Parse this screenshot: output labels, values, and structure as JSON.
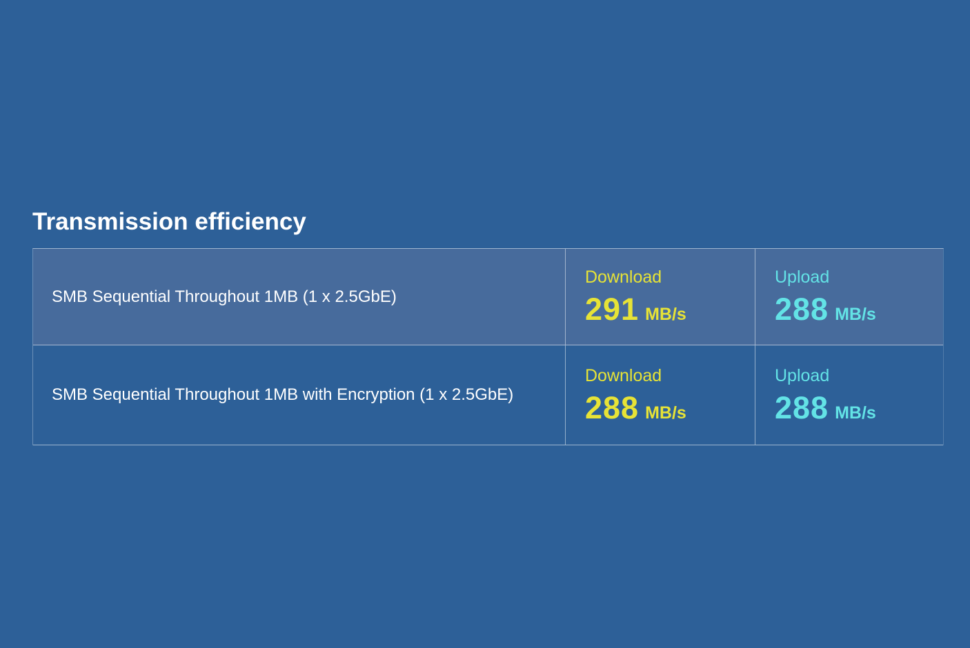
{
  "page": {
    "title": "Transmission efficiency",
    "colors": {
      "background": "#2d6098",
      "row_highlight": "#476b9c",
      "download_accent": "#e7e336",
      "upload_accent": "#63e3e6",
      "text": "#ffffff"
    }
  },
  "table": {
    "rows": [
      {
        "name": "SMB Sequential Throughout 1MB (1 x 2.5GbE)",
        "download": {
          "label": "Download",
          "value": "291",
          "unit": "MB/s"
        },
        "upload": {
          "label": "Upload",
          "value": "288",
          "unit": "MB/s"
        }
      },
      {
        "name": "SMB Sequential Throughout 1MB with Encryption (1 x 2.5GbE)",
        "download": {
          "label": "Download",
          "value": "288",
          "unit": "MB/s"
        },
        "upload": {
          "label": "Upload",
          "value": "288",
          "unit": "MB/s"
        }
      }
    ]
  }
}
